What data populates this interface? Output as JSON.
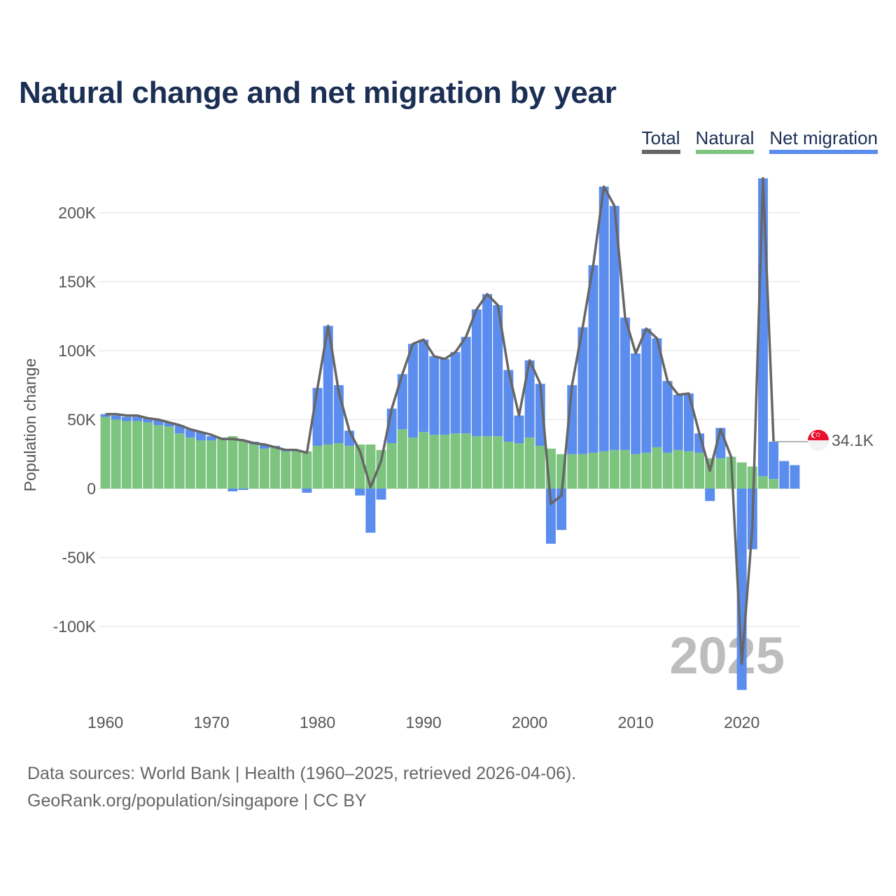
{
  "title": "Natural change and net migration by year",
  "legend": [
    {
      "label": "Total",
      "color": "#666666"
    },
    {
      "label": "Natural",
      "color": "#7dc47f"
    },
    {
      "label": "Net migration",
      "color": "#5b8def"
    }
  ],
  "current_year_label": "2025",
  "end_value_label": "34.1K",
  "end_marker_icon": "singapore-flag-icon",
  "source": {
    "line1": "Data sources: World Bank | Health (1960–2025, retrieved 2026-04-06).",
    "line2": "GeoRank.org/population/singapore | CC BY"
  },
  "chart_data": {
    "type": "bar",
    "title": "Natural change and net migration by year",
    "ylabel": "Population change",
    "xlabel": "",
    "ylim": [
      -145000,
      225000
    ],
    "y_ticks": [
      200000,
      150000,
      100000,
      50000,
      0,
      -50000,
      -100000
    ],
    "y_tick_labels": [
      "200K",
      "150K",
      "100K",
      "50K",
      "0",
      "-50K",
      "-100K"
    ],
    "x_ticks": [
      1960,
      1970,
      1980,
      1990,
      2000,
      2010,
      2020
    ],
    "x_tick_labels": [
      "1960",
      "1970",
      "1980",
      "1990",
      "2000",
      "2010",
      "2020"
    ],
    "years": [
      1960,
      1961,
      1962,
      1963,
      1964,
      1965,
      1966,
      1967,
      1968,
      1969,
      1970,
      1971,
      1972,
      1973,
      1974,
      1975,
      1976,
      1977,
      1978,
      1979,
      1980,
      1981,
      1982,
      1983,
      1984,
      1985,
      1986,
      1987,
      1988,
      1989,
      1990,
      1991,
      1992,
      1993,
      1994,
      1995,
      1996,
      1997,
      1998,
      1999,
      2000,
      2001,
      2002,
      2003,
      2004,
      2005,
      2006,
      2007,
      2008,
      2009,
      2010,
      2011,
      2012,
      2013,
      2014,
      2015,
      2016,
      2017,
      2018,
      2019,
      2020,
      2021,
      2022,
      2023,
      2024,
      2025
    ],
    "series": [
      {
        "name": "Natural",
        "color": "#7dc47f",
        "values": [
          52000,
          50000,
          49000,
          49000,
          48000,
          46000,
          45000,
          40000,
          37000,
          35000,
          35000,
          36000,
          38000,
          35000,
          32000,
          29000,
          30000,
          27000,
          27000,
          27000,
          31000,
          32000,
          33000,
          31000,
          32000,
          32000,
          28000,
          33000,
          43000,
          37000,
          41000,
          39000,
          39000,
          40000,
          40000,
          38000,
          38000,
          38000,
          34000,
          33000,
          37000,
          31000,
          29000,
          25000,
          25000,
          25000,
          26000,
          27000,
          28000,
          28000,
          25000,
          26000,
          30000,
          26000,
          28000,
          27000,
          26000,
          22000,
          22000,
          23000,
          19000,
          16000,
          9000,
          7000,
          null,
          null
        ]
      },
      {
        "name": "Net migration",
        "color": "#5b8def",
        "values": [
          2000,
          3000,
          3000,
          3000,
          3000,
          4000,
          3000,
          6000,
          6000,
          6000,
          3000,
          1000,
          -2000,
          -1000,
          2000,
          3000,
          1000,
          1000,
          1000,
          -3000,
          42000,
          86000,
          42000,
          11000,
          -5000,
          -32000,
          -8000,
          25000,
          40000,
          68000,
          67000,
          57000,
          55000,
          59000,
          70000,
          92000,
          103000,
          95000,
          52000,
          20000,
          56000,
          45000,
          -40000,
          -30000,
          50000,
          92000,
          136000,
          192000,
          177000,
          96000,
          73000,
          90000,
          79000,
          52000,
          40000,
          42000,
          14000,
          -9000,
          22000,
          0,
          -146000,
          -44000,
          216000,
          27000,
          null,
          null
        ]
      },
      {
        "name": "Total",
        "color": "#666666",
        "values": [
          54000,
          54000,
          53000,
          53000,
          51000,
          50000,
          48000,
          46000,
          43000,
          41000,
          39000,
          36000,
          36000,
          35000,
          33000,
          32000,
          30000,
          28000,
          28000,
          26000,
          73000,
          118000,
          70000,
          42000,
          27000,
          1000,
          20000,
          58000,
          83000,
          105000,
          108000,
          96000,
          94000,
          99000,
          110000,
          130000,
          141000,
          133000,
          86000,
          53000,
          93000,
          76000,
          -11000,
          -5000,
          75000,
          117000,
          162000,
          219000,
          205000,
          124000,
          98000,
          116000,
          109000,
          78000,
          68000,
          69000,
          40000,
          13000,
          43000,
          23000,
          -127000,
          -28000,
          225000,
          34100,
          null,
          null
        ]
      }
    ],
    "net_migration_bars_only": [
      {
        "year": 2024,
        "value": 20000
      },
      {
        "year": 2025,
        "value": 17000
      }
    ]
  }
}
